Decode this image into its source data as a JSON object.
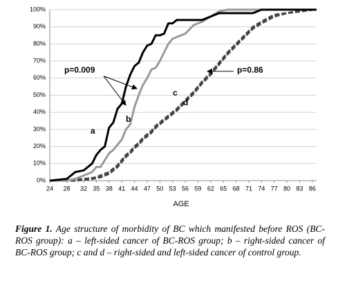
{
  "chart_data": {
    "type": "line",
    "x": [
      24,
      28,
      30,
      32,
      34,
      35,
      36,
      37,
      38,
      39,
      40,
      41,
      42,
      43,
      44,
      45,
      46,
      47,
      48,
      49,
      50,
      51,
      52,
      53,
      54,
      56,
      58,
      60,
      62,
      64,
      66,
      68,
      70,
      72,
      74,
      77,
      80,
      83,
      86,
      87
    ],
    "series": [
      {
        "name": "a",
        "color": "#000000",
        "dashed": false,
        "values": [
          0,
          1,
          5,
          6,
          10,
          15,
          18,
          20,
          31,
          34,
          42,
          45,
          55,
          62,
          67,
          69,
          75,
          79,
          80,
          85,
          85,
          86,
          92,
          92,
          94,
          94,
          94,
          94,
          96,
          98,
          98,
          98,
          98,
          98,
          100,
          100,
          100,
          100,
          100,
          100
        ]
      },
      {
        "name": "b",
        "color": "#999999",
        "dashed": false,
        "values": [
          0,
          0,
          1,
          3,
          5,
          8,
          8,
          12,
          16,
          18,
          21,
          24,
          30,
          33,
          43,
          50,
          56,
          60,
          65,
          66,
          70,
          75,
          80,
          83,
          84,
          86,
          91,
          93,
          96,
          99,
          100,
          100,
          100,
          100,
          100,
          100,
          100,
          100,
          100,
          100
        ]
      },
      {
        "name": "c",
        "color": "#444444",
        "dashed": true,
        "values": [
          0,
          0,
          0.5,
          1,
          1.5,
          2,
          3,
          4,
          5,
          7,
          9,
          12,
          15,
          17,
          20,
          22,
          25,
          27,
          29,
          32,
          34,
          36,
          38,
          40,
          42,
          47,
          52,
          58,
          63,
          69,
          75,
          80,
          85,
          90,
          93,
          97,
          98,
          99,
          100,
          100
        ]
      },
      {
        "name": "d",
        "color": "#444444",
        "dashed": true,
        "values": [
          0,
          0,
          0,
          0.5,
          1,
          1.5,
          2,
          3,
          4,
          6,
          8,
          11,
          14,
          16,
          19,
          21,
          24,
          26,
          28,
          31,
          33,
          35,
          37,
          39,
          41,
          46,
          51,
          57,
          62,
          68,
          74,
          79,
          84,
          89,
          92,
          96,
          98,
          99,
          100,
          100
        ]
      }
    ],
    "xlim": [
      24,
      87
    ],
    "xticks": [
      24,
      28,
      32,
      35,
      38,
      41,
      44,
      47,
      50,
      53,
      56,
      59,
      62,
      65,
      68,
      71,
      74,
      77,
      80,
      83,
      86
    ],
    "ylim": [
      0,
      100
    ],
    "yticks": [
      {
        "value": 0,
        "label": "0%"
      },
      {
        "value": 10,
        "label": "10%"
      },
      {
        "value": 20,
        "label": "20%"
      },
      {
        "value": 30,
        "label": "30%"
      },
      {
        "value": 40,
        "label": "40%"
      },
      {
        "value": 50,
        "label": "50%"
      },
      {
        "value": 60,
        "label": "60%"
      },
      {
        "value": 70,
        "label": "70%"
      },
      {
        "value": 80,
        "label": "80%"
      },
      {
        "value": 90,
        "label": "90%"
      },
      {
        "value": 100,
        "label": "100%"
      }
    ],
    "grid": true,
    "xlabel": "AGE",
    "annotations": [
      "p=0.009",
      "p=0.86"
    ],
    "caption": {
      "label": "Figure 1.",
      "text": "Age structure of morbidity of BC which manifested before ROS (BC-ROS group): a – left-sided cancer of BC-ROS group; b – right-sided cancer of BC-ROS group; c and d – right-sided and left-sided cancer of control group."
    }
  }
}
